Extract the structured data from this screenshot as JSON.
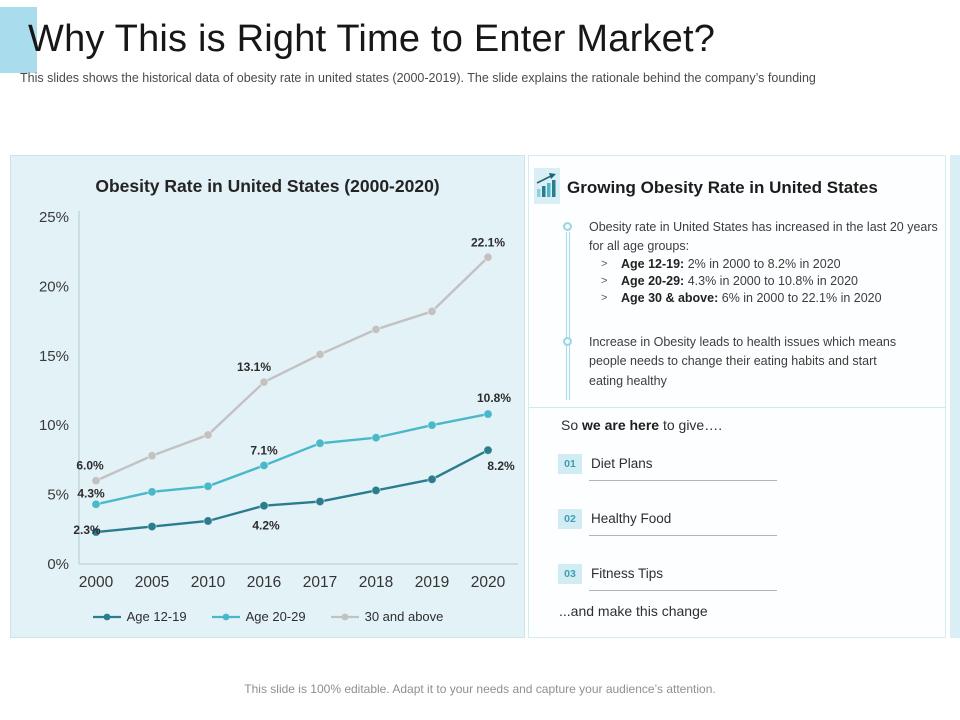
{
  "slide": {
    "title": "Why This is Right Time to Enter Market?",
    "subtitle": "This slides shows the historical data of obesity rate in united states (2000-2019). The slide explains the rationale behind the company’s founding",
    "footer": "This slide is 100% editable. Adapt it to your needs and capture your audience’s attention."
  },
  "chart_data": {
    "type": "line",
    "title": "Obesity Rate in United States (2000-2020)",
    "categories": [
      "2000",
      "2005",
      "2010",
      "2016",
      "2017",
      "2018",
      "2019",
      "2020"
    ],
    "series": [
      {
        "name": "Age 12-19",
        "color": "#2b7d8e",
        "values": [
          2.3,
          2.7,
          3.1,
          4.2,
          4.5,
          5.3,
          6.1,
          8.2
        ]
      },
      {
        "name": "Age 20-29",
        "color": "#4bb8c9",
        "values": [
          4.3,
          5.2,
          5.6,
          7.1,
          8.7,
          9.1,
          10.0,
          10.8
        ]
      },
      {
        "name": "30 and above",
        "color": "#c3c2c2",
        "values": [
          6.0,
          7.8,
          9.3,
          13.1,
          15.1,
          16.9,
          18.2,
          22.1
        ]
      }
    ],
    "point_labels": [
      {
        "series": 0,
        "index": 0,
        "text": "2.3%"
      },
      {
        "series": 0,
        "index": 3,
        "text": "4.2%"
      },
      {
        "series": 0,
        "index": 7,
        "text": "8.2%"
      },
      {
        "series": 1,
        "index": 0,
        "text": "4.3%"
      },
      {
        "series": 1,
        "index": 3,
        "text": "7.1%"
      },
      {
        "series": 1,
        "index": 7,
        "text": "10.8%"
      },
      {
        "series": 2,
        "index": 0,
        "text": "6.0%"
      },
      {
        "series": 2,
        "index": 3,
        "text": "13.1%"
      },
      {
        "series": 2,
        "index": 7,
        "text": "22.1%"
      }
    ],
    "y_ticks": [
      "25%",
      "20%",
      "15%",
      "10%",
      "5%",
      "0%"
    ],
    "ylim": [
      0,
      25
    ],
    "grid": false,
    "legend_position": "bottom",
    "xlabel": "",
    "ylabel": ""
  },
  "insights": {
    "icon": "growth-chart-icon",
    "heading": "Growing Obesity Rate in United States",
    "bullet1": {
      "text": "Obesity rate in United States has increased in the last 20 years for all age groups:",
      "marker": ">",
      "sub_bullets": [
        {
          "bold": "Age 12-19:",
          "rest": " 2% in 2000 to 8.2% in 2020"
        },
        {
          "bold": "Age 20-29:",
          "rest": " 4.3% in 2000 to 10.8% in 2020"
        },
        {
          "bold": "Age 30 & above:",
          "rest": " 6% in 2000 to 22.1% in 2020"
        }
      ]
    },
    "bullet2": "Increase in Obesity leads to health issues which means people needs to change their eating habits and start eating healthy"
  },
  "offerings": {
    "intro_prefix": "So ",
    "intro_bold": "we are here",
    "intro_suffix": " to give….",
    "items": [
      {
        "number": "01",
        "label": "Diet Plans"
      },
      {
        "number": "02",
        "label": "Healthy Food"
      },
      {
        "number": "03",
        "label": "Fitness Tips"
      }
    ],
    "outro": "...and make this change"
  },
  "colors": {
    "accent_light_blue": "#a9dcec",
    "chart_panel_bg": "#e3f2f7",
    "panel_border": "#d5ecf2",
    "series_age_12_19": "#2b7d8e",
    "series_age_20_29": "#4bb8c9",
    "series_30_above": "#c3c2c2",
    "badge_bg": "#d2ecf3",
    "badge_text": "#3f9db3",
    "timeline_blue": "#a9dae7"
  }
}
